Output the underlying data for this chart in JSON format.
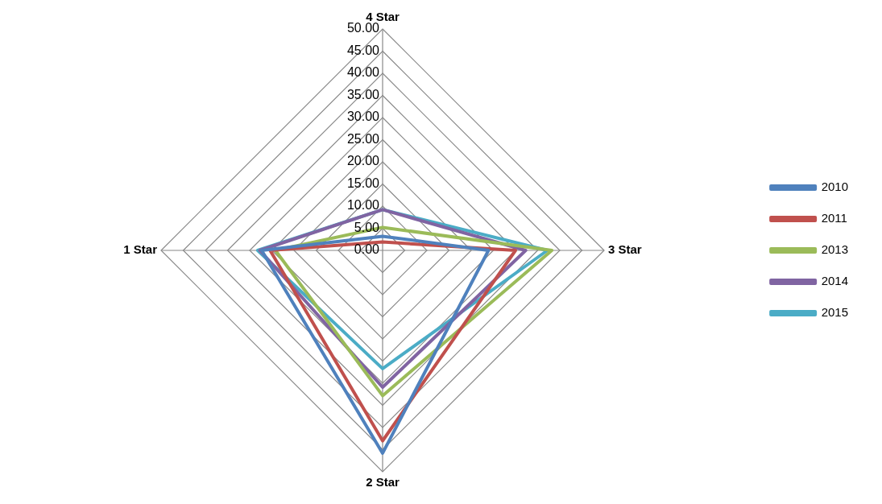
{
  "chart_data": {
    "type": "radar",
    "categories": [
      "4 Star",
      "3 Star",
      "2 Star",
      "1 Star"
    ],
    "series": [
      {
        "name": "2010",
        "color": "#4f81bd",
        "values": [
          3.2,
          23.9,
          45.8,
          27.3
        ]
      },
      {
        "name": "2011",
        "color": "#c0504d",
        "values": [
          1.9,
          30,
          43,
          25.4
        ]
      },
      {
        "name": "2013",
        "color": "#9bbb59",
        "values": [
          5.2,
          38.2,
          32.8,
          24.2
        ]
      },
      {
        "name": "2014",
        "color": "#8064a2",
        "values": [
          9.2,
          32.3,
          30.9,
          27.7
        ]
      },
      {
        "name": "2015",
        "color": "#4bacc6",
        "values": [
          9.2,
          37.2,
          26.7,
          28.2
        ]
      }
    ],
    "ylim": [
      0,
      50
    ],
    "yticks": [
      {
        "value": 0,
        "label": "0.00"
      },
      {
        "value": 5,
        "label": "5.00"
      },
      {
        "value": 10,
        "label": "10.00"
      },
      {
        "value": 15,
        "label": "15.00"
      },
      {
        "value": 20,
        "label": "20.00"
      },
      {
        "value": 25,
        "label": "25.00"
      },
      {
        "value": 30,
        "label": "30.00"
      },
      {
        "value": 35,
        "label": "35.00"
      },
      {
        "value": 40,
        "label": "40.00"
      },
      {
        "value": 45,
        "label": "45.00"
      },
      {
        "value": 50,
        "label": "50.00"
      }
    ],
    "grid": true,
    "legend": "right",
    "marker": "none"
  }
}
